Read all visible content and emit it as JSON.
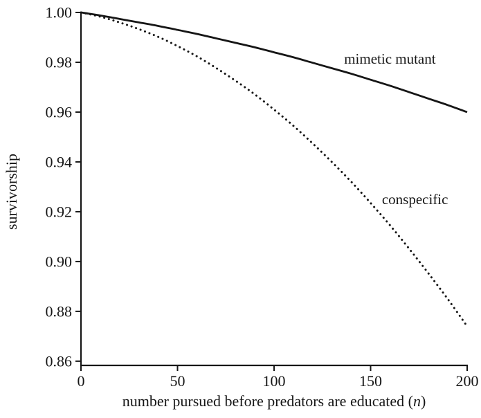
{
  "figure": {
    "background": "#ffffff",
    "ink": "#161616"
  },
  "chart_data": {
    "type": "line",
    "title": "",
    "ylabel": "survivorship",
    "xlabel_prefix": "number pursued before predators are educated (",
    "xlabel_var": "n",
    "xlabel_suffix": ")",
    "xlim": [
      0,
      200
    ],
    "ylim": [
      0.8583,
      1.0
    ],
    "grid": false,
    "legend_position": "inline-annotations",
    "x_ticks": [
      {
        "value": 0,
        "label": "0"
      },
      {
        "value": 50,
        "label": "50"
      },
      {
        "value": 100,
        "label": "100"
      },
      {
        "value": 150,
        "label": "150"
      },
      {
        "value": 200,
        "label": "200"
      }
    ],
    "y_ticks": [
      {
        "value": 0.86,
        "label": "0.86"
      },
      {
        "value": 0.88,
        "label": "0.88"
      },
      {
        "value": 0.9,
        "label": "0.90"
      },
      {
        "value": 0.92,
        "label": "0.92"
      },
      {
        "value": 0.94,
        "label": "0.94"
      },
      {
        "value": 0.96,
        "label": "0.96"
      },
      {
        "value": 0.98,
        "label": "0.98"
      },
      {
        "value": 1.0,
        "label": "1.00"
      }
    ],
    "series": [
      {
        "name": "mimetic mutant",
        "style": "solid",
        "x": [
          0,
          10,
          20,
          30,
          40,
          50,
          60,
          70,
          80,
          90,
          100,
          110,
          120,
          130,
          140,
          150,
          160,
          170,
          180,
          190,
          200
        ],
        "y": [
          1.0,
          0.9988,
          0.9974,
          0.996,
          0.9946,
          0.993,
          0.9914,
          0.9896,
          0.9878,
          0.986,
          0.984,
          0.982,
          0.9798,
          0.9776,
          0.9754,
          0.973,
          0.9706,
          0.968,
          0.9654,
          0.9628,
          0.96
        ],
        "label": {
          "text": "mimetic mutant",
          "x": 160,
          "y": 0.9795
        }
      },
      {
        "name": "conspecific",
        "style": "dotted",
        "x": [
          0,
          10,
          20,
          30,
          40,
          50,
          60,
          70,
          80,
          90,
          100,
          110,
          120,
          130,
          140,
          150,
          160,
          170,
          180,
          190,
          200
        ],
        "y": [
          1.0,
          0.9983,
          0.996,
          0.9933,
          0.9902,
          0.9865,
          0.9824,
          0.9777,
          0.9726,
          0.9671,
          0.961,
          0.9545,
          0.9474,
          0.9399,
          0.932,
          0.9235,
          0.9146,
          0.9051,
          0.8952,
          0.8849,
          0.874
        ],
        "label": {
          "text": "conspecific",
          "x": 173,
          "y": 0.923
        }
      }
    ]
  }
}
